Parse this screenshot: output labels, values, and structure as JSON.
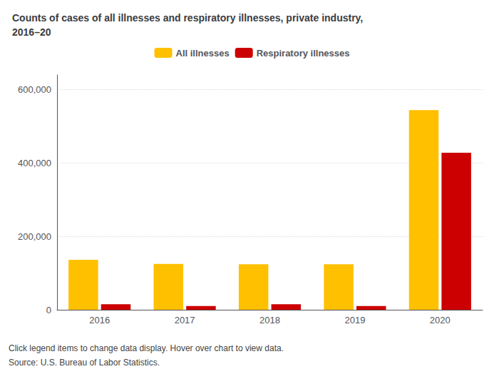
{
  "chart_data": {
    "type": "bar",
    "title": "Counts of cases of all illnesses and respiratory illnesses, private industry,\n2016–20",
    "categories": [
      "2016",
      "2017",
      "2018",
      "2019",
      "2020"
    ],
    "series": [
      {
        "name": "All illnesses",
        "color": "#FFC000",
        "values": [
          136000,
          125000,
          124000,
          124000,
          544000
        ]
      },
      {
        "name": "Respiratory illnesses",
        "color": "#CC0000",
        "values": [
          15000,
          10000,
          15000,
          10000,
          428000
        ]
      }
    ],
    "ylim": [
      0,
      640000
    ],
    "yticks": [
      0,
      {
        "value": 200000,
        "label": "200,000"
      },
      {
        "value": 400000,
        "label": "400,000"
      },
      {
        "value": 600000,
        "label": "600,000"
      }
    ],
    "grid": true,
    "legend": "top",
    "annotations": [
      "Click legend items to change data display. Hover over chart to view data.",
      "Source: U.S. Bureau of Labor Statistics."
    ]
  }
}
